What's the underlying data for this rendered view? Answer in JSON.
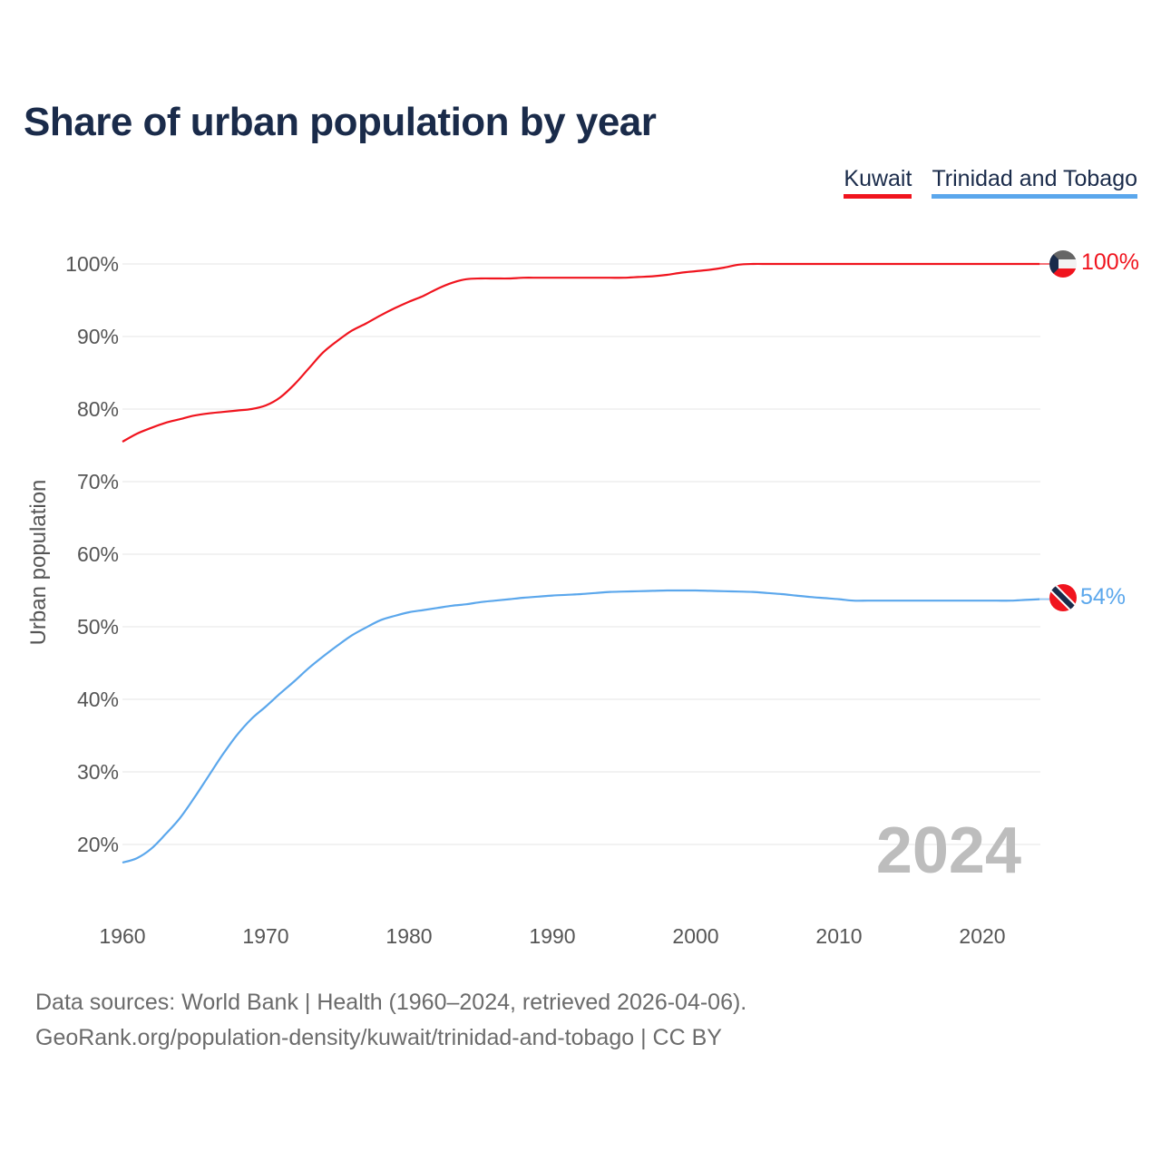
{
  "chart_data": {
    "type": "line",
    "title": "Share of urban population by year",
    "xlabel": "",
    "ylabel": "Urban population",
    "xlim": [
      1960,
      2024
    ],
    "ylim": [
      13,
      100
    ],
    "x_ticks": [
      1960,
      1970,
      1980,
      1990,
      2000,
      2010,
      2020
    ],
    "x_tick_labels": [
      "1960",
      "1970",
      "1980",
      "1990",
      "2000",
      "2010",
      "2020"
    ],
    "y_ticks": [
      20,
      30,
      40,
      50,
      60,
      70,
      80,
      90,
      100
    ],
    "y_tick_labels": [
      "20%",
      "30%",
      "40%",
      "50%",
      "60%",
      "70%",
      "80%",
      "90%",
      "100%"
    ],
    "grid": true,
    "legend_position": "top-right",
    "year_watermark": "2024",
    "x": [
      1960,
      1961,
      1962,
      1963,
      1964,
      1965,
      1966,
      1967,
      1968,
      1969,
      1970,
      1971,
      1972,
      1973,
      1974,
      1975,
      1976,
      1977,
      1978,
      1979,
      1980,
      1981,
      1982,
      1983,
      1984,
      1985,
      1986,
      1987,
      1988,
      1989,
      1990,
      1991,
      1992,
      1993,
      1994,
      1995,
      1996,
      1997,
      1998,
      1999,
      2000,
      2001,
      2002,
      2003,
      2004,
      2005,
      2006,
      2007,
      2008,
      2009,
      2010,
      2011,
      2012,
      2013,
      2014,
      2015,
      2016,
      2017,
      2018,
      2019,
      2020,
      2021,
      2022,
      2023,
      2024
    ],
    "series": [
      {
        "name": "Kuwait",
        "color": "#f0141e",
        "end_label": "100%",
        "values": [
          75.5,
          76.6,
          77.4,
          78.1,
          78.6,
          79.1,
          79.4,
          79.6,
          79.8,
          80.0,
          80.5,
          81.6,
          83.4,
          85.6,
          87.8,
          89.4,
          90.8,
          91.8,
          92.9,
          93.9,
          94.8,
          95.6,
          96.6,
          97.4,
          97.9,
          98.0,
          98.0,
          98.0,
          98.1,
          98.1,
          98.1,
          98.1,
          98.1,
          98.1,
          98.1,
          98.1,
          98.2,
          98.3,
          98.5,
          98.8,
          99.0,
          99.2,
          99.5,
          99.9,
          100,
          100,
          100,
          100,
          100,
          100,
          100,
          100,
          100,
          100,
          100,
          100,
          100,
          100,
          100,
          100,
          100,
          100,
          100,
          100,
          100
        ]
      },
      {
        "name": "Trinidad and Tobago",
        "color": "#5ba7ec",
        "end_label": "54%",
        "values": [
          17.5,
          18.1,
          19.4,
          21.4,
          23.6,
          26.4,
          29.4,
          32.4,
          35.1,
          37.3,
          39.0,
          40.8,
          42.5,
          44.3,
          45.9,
          47.4,
          48.8,
          49.9,
          50.9,
          51.5,
          52.0,
          52.3,
          52.6,
          52.9,
          53.1,
          53.4,
          53.6,
          53.8,
          54.0,
          54.15,
          54.3,
          54.4,
          54.5,
          54.65,
          54.8,
          54.85,
          54.9,
          54.95,
          55.0,
          55.0,
          55.0,
          54.95,
          54.9,
          54.85,
          54.8,
          54.65,
          54.5,
          54.3,
          54.1,
          53.95,
          53.8,
          53.6,
          53.6,
          53.6,
          53.6,
          53.6,
          53.6,
          53.6,
          53.6,
          53.6,
          53.6,
          53.6,
          53.6,
          53.7,
          53.8
        ]
      }
    ]
  },
  "footer": {
    "line1": "Data sources: World Bank | Health (1960–2024, retrieved 2026-04-06).",
    "line2": "GeoRank.org/population-density/kuwait/trinidad-and-tobago | CC BY"
  }
}
